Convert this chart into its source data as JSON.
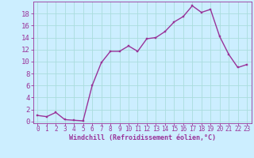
{
  "x_vals": [
    0,
    1,
    2,
    3,
    4,
    5,
    6,
    7,
    8,
    9,
    10,
    11,
    12,
    13,
    14,
    15,
    16,
    17,
    18,
    19,
    20,
    21,
    22,
    23
  ],
  "y_vals": [
    1.0,
    0.8,
    1.5,
    0.3,
    0.2,
    0.1,
    6.0,
    9.8,
    11.7,
    11.7,
    12.6,
    11.7,
    13.8,
    14.0,
    15.0,
    16.6,
    17.5,
    19.3,
    18.2,
    18.7,
    14.2,
    11.2,
    9.0,
    9.5
  ],
  "x_labels": [
    "0",
    "1",
    "2",
    "3",
    "4",
    "5",
    "6",
    "7",
    "8",
    "9",
    "10",
    "11",
    "12",
    "13",
    "14",
    "15",
    "16",
    "17",
    "18",
    "19",
    "20",
    "21",
    "22",
    "23"
  ],
  "y_ticks": [
    0,
    2,
    4,
    6,
    8,
    10,
    12,
    14,
    16,
    18
  ],
  "ylim": [
    -0.3,
    20.0
  ],
  "xlim": [
    -0.5,
    23.5
  ],
  "line_color": "#993399",
  "marker_color": "#993399",
  "bg_color": "#cceeff",
  "grid_color": "#aadddd",
  "xlabel": "Windchill (Refroidissement éolien,°C)",
  "xlabel_color": "#993399",
  "tick_color": "#993399",
  "label_fontsize": 5.5,
  "ytick_fontsize": 6.5,
  "xlabel_fontsize": 6.0
}
